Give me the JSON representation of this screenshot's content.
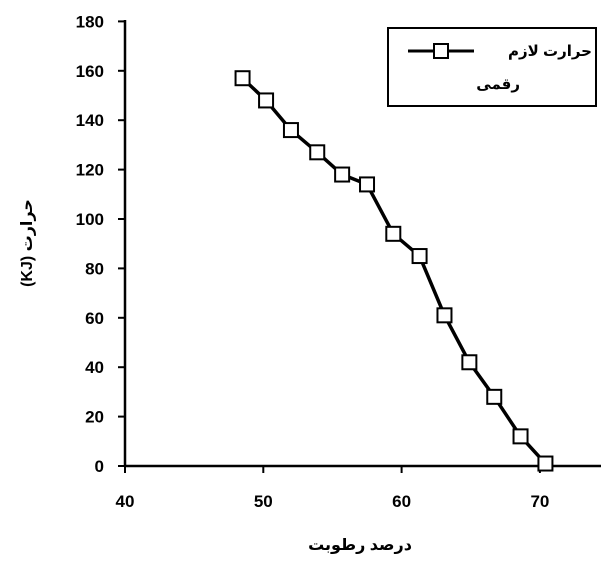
{
  "chart_data": {
    "type": "line",
    "xlabel": "درصد رطوبت",
    "ylabel": "حرارت (KJ)",
    "xlim": [
      40,
      75
    ],
    "ylim": [
      0,
      180
    ],
    "x_ticks": [
      "40",
      "50",
      "60",
      "70"
    ],
    "y_ticks": [
      "0",
      "20",
      "40",
      "60",
      "80",
      "100",
      "120",
      "140",
      "160",
      "180"
    ],
    "grid": false,
    "legend_position": "top-right",
    "series": [
      {
        "name": "حرارت لازم رقمی",
        "marker": "open-square",
        "color": "#000000",
        "x": [
          48.5,
          50.2,
          52.0,
          53.9,
          55.7,
          57.5,
          59.4,
          61.3,
          63.1,
          64.9,
          66.7,
          68.6,
          70.4
        ],
        "y": [
          157,
          148,
          136,
          127,
          118,
          114,
          94,
          85,
          61,
          42,
          28,
          12,
          1
        ]
      }
    ]
  },
  "legend": {
    "line1": "حرارت لازم",
    "line2": "رقمی"
  }
}
